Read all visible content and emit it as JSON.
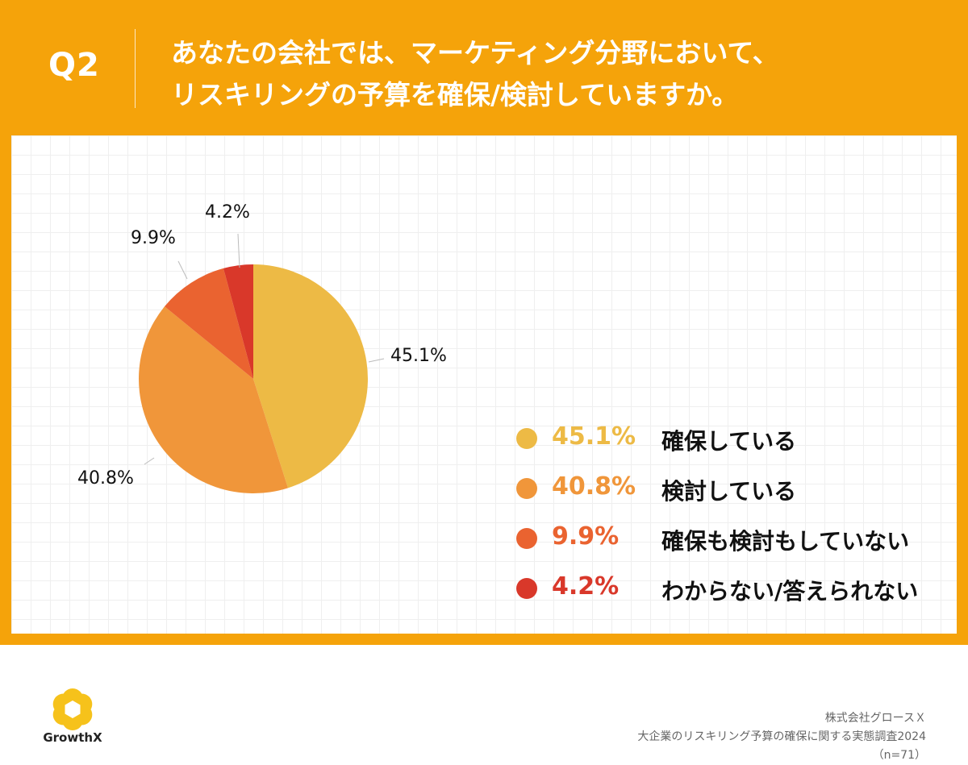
{
  "header": {
    "q_label": "Q2",
    "question_line1": "あなたの会社では、マーケティング分野において、",
    "question_line2": "リスキリングの予算を確保/検討していますか。"
  },
  "chart_data": {
    "type": "pie",
    "slices": [
      {
        "label": "確保している",
        "value": 45.1,
        "display": "45.1%",
        "color": "#EDBA45"
      },
      {
        "label": "検討している",
        "value": 40.8,
        "display": "40.8%",
        "color": "#F0963A"
      },
      {
        "label": "確保も検討もしていない",
        "value": 9.9,
        "display": "9.9%",
        "color": "#EA6330"
      },
      {
        "label": "わからない/答えられない",
        "value": 4.2,
        "display": "4.2%",
        "color": "#D9382A"
      }
    ],
    "legend_position": "right",
    "start": "12 o'clock",
    "direction": "clockwise"
  },
  "logo": {
    "name": "GrowthX",
    "color": "#F6C21B"
  },
  "source": {
    "company": "株式会社グロースＸ",
    "survey": "大企業のリスキリング予算の確保に関する実態調査2024",
    "sample": "（n=71）"
  },
  "colors": {
    "frame": "#F5A30A",
    "panel": "#FFFFFF"
  }
}
